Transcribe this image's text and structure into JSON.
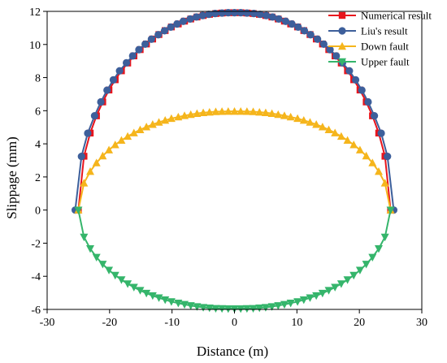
{
  "chart_data": {
    "type": "line",
    "xlabel": "Distance (m)",
    "ylabel": "Slippage (mm)",
    "xlim": [
      -30,
      30
    ],
    "ylim": [
      -6,
      12
    ],
    "xticks": [
      -30,
      -20,
      -10,
      0,
      10,
      20,
      30
    ],
    "yticks": [
      -6,
      -4,
      -2,
      0,
      2,
      4,
      6,
      8,
      10,
      12
    ],
    "grid": false,
    "legend_position": "top-right",
    "series": [
      {
        "name": "Numerical result",
        "color": "#e8141c",
        "marker": "square",
        "x": [
          -25.0,
          -24.1,
          -23.1,
          -22.1,
          -21.1,
          -20.1,
          -19.1,
          -18.1,
          -17.1,
          -16.1,
          -15.1,
          -14.1,
          -13.1,
          -12.1,
          -11.1,
          -10.1,
          -9.0,
          -8.0,
          -7.0,
          -6.0,
          -5.0,
          -4.0,
          -3.0,
          -2.0,
          -1.0,
          0.0,
          1.0,
          2.0,
          3.0,
          4.0,
          5.0,
          6.0,
          7.0,
          8.0,
          9.0,
          10.1,
          11.1,
          12.1,
          13.1,
          14.1,
          15.1,
          16.1,
          17.1,
          18.1,
          19.1,
          20.1,
          21.1,
          22.1,
          23.1,
          24.1,
          25.0
        ],
        "y": [
          0.0,
          3.25,
          4.65,
          5.69,
          6.53,
          7.25,
          7.87,
          8.41,
          8.88,
          9.31,
          9.69,
          10.03,
          10.33,
          10.6,
          10.84,
          11.06,
          11.24,
          11.41,
          11.54,
          11.66,
          11.75,
          11.82,
          11.87,
          11.9,
          11.92,
          11.92,
          11.92,
          11.9,
          11.87,
          11.82,
          11.75,
          11.66,
          11.54,
          11.41,
          11.24,
          11.06,
          10.84,
          10.6,
          10.33,
          10.03,
          9.69,
          9.31,
          8.88,
          8.41,
          7.87,
          7.25,
          6.53,
          5.69,
          4.65,
          3.25,
          0.0
        ]
      },
      {
        "name": "Liu's result",
        "color": "#3d5f9b",
        "marker": "circle",
        "x": [
          -25.5,
          -24.5,
          -23.5,
          -22.4,
          -21.4,
          -20.4,
          -19.4,
          -18.4,
          -17.3,
          -16.3,
          -15.3,
          -14.3,
          -13.3,
          -12.2,
          -11.2,
          -10.2,
          -9.2,
          -8.2,
          -7.1,
          -6.1,
          -5.1,
          -4.1,
          -3.1,
          -2.0,
          -1.0,
          0.0,
          1.0,
          2.0,
          3.1,
          4.1,
          5.1,
          6.1,
          7.1,
          8.2,
          9.2,
          10.2,
          11.2,
          12.2,
          13.3,
          14.3,
          15.3,
          16.3,
          17.3,
          18.4,
          19.4,
          20.4,
          21.4,
          22.4,
          23.5,
          24.5,
          25.5
        ],
        "y": [
          0.0,
          3.24,
          4.64,
          5.69,
          6.53,
          7.24,
          7.86,
          8.41,
          8.89,
          9.31,
          9.69,
          10.02,
          10.32,
          10.59,
          10.83,
          11.05,
          11.24,
          11.4,
          11.54,
          11.66,
          11.75,
          11.82,
          11.87,
          11.9,
          11.92,
          11.92,
          11.92,
          11.9,
          11.87,
          11.82,
          11.75,
          11.66,
          11.54,
          11.4,
          11.24,
          11.05,
          10.83,
          10.59,
          10.32,
          10.02,
          9.69,
          9.31,
          8.89,
          8.41,
          7.86,
          7.24,
          6.53,
          5.69,
          4.64,
          3.24,
          0.0
        ]
      },
      {
        "name": "Down fault",
        "color": "#f5b51c",
        "marker": "triangle-up",
        "x": [
          -25.0,
          -24.1,
          -23.1,
          -22.1,
          -21.1,
          -20.1,
          -19.1,
          -18.1,
          -17.1,
          -16.1,
          -15.1,
          -14.1,
          -13.1,
          -12.1,
          -11.1,
          -10.1,
          -9.0,
          -8.0,
          -7.0,
          -6.0,
          -5.0,
          -4.0,
          -3.0,
          -2.0,
          -1.0,
          0.0,
          1.0,
          2.0,
          3.0,
          4.0,
          5.0,
          6.0,
          7.0,
          8.0,
          9.0,
          10.1,
          11.1,
          12.1,
          13.1,
          14.1,
          15.1,
          16.1,
          17.1,
          18.1,
          19.1,
          20.1,
          21.1,
          22.1,
          23.1,
          24.1,
          25.0
        ],
        "y": [
          0.0,
          1.63,
          2.33,
          2.85,
          3.27,
          3.63,
          3.94,
          4.21,
          4.45,
          4.66,
          4.85,
          5.02,
          5.17,
          5.3,
          5.42,
          5.53,
          5.62,
          5.7,
          5.77,
          5.83,
          5.88,
          5.91,
          5.94,
          5.95,
          5.96,
          5.96,
          5.96,
          5.95,
          5.94,
          5.91,
          5.88,
          5.83,
          5.77,
          5.7,
          5.62,
          5.53,
          5.42,
          5.3,
          5.17,
          5.02,
          4.85,
          4.66,
          4.45,
          4.21,
          3.94,
          3.63,
          3.27,
          2.85,
          2.33,
          1.63,
          0.0
        ]
      },
      {
        "name": "Upper fault",
        "color": "#35b56b",
        "marker": "triangle-down",
        "x": [
          -25.0,
          -24.1,
          -23.1,
          -22.1,
          -21.1,
          -20.1,
          -19.1,
          -18.1,
          -17.1,
          -16.1,
          -15.1,
          -14.1,
          -13.1,
          -12.1,
          -11.1,
          -10.1,
          -9.0,
          -8.0,
          -7.0,
          -6.0,
          -5.0,
          -4.0,
          -3.0,
          -2.0,
          -1.0,
          0.0,
          1.0,
          2.0,
          3.0,
          4.0,
          5.0,
          6.0,
          7.0,
          8.0,
          9.0,
          10.1,
          11.1,
          12.1,
          13.1,
          14.1,
          15.1,
          16.1,
          17.1,
          18.1,
          19.1,
          20.1,
          21.1,
          22.1,
          23.1,
          24.1,
          25.0
        ],
        "y": [
          0.0,
          -1.63,
          -2.33,
          -2.85,
          -3.27,
          -3.63,
          -3.94,
          -4.21,
          -4.45,
          -4.66,
          -4.85,
          -5.02,
          -5.17,
          -5.3,
          -5.42,
          -5.53,
          -5.62,
          -5.7,
          -5.77,
          -5.83,
          -5.88,
          -5.91,
          -5.94,
          -5.95,
          -5.96,
          -5.96,
          -5.96,
          -5.95,
          -5.94,
          -5.91,
          -5.88,
          -5.83,
          -5.77,
          -5.7,
          -5.62,
          -5.53,
          -5.42,
          -5.3,
          -5.17,
          -5.02,
          -4.85,
          -4.66,
          -4.45,
          -4.21,
          -3.94,
          -3.63,
          -3.27,
          -2.85,
          -2.33,
          -1.63,
          0.0
        ]
      }
    ]
  }
}
